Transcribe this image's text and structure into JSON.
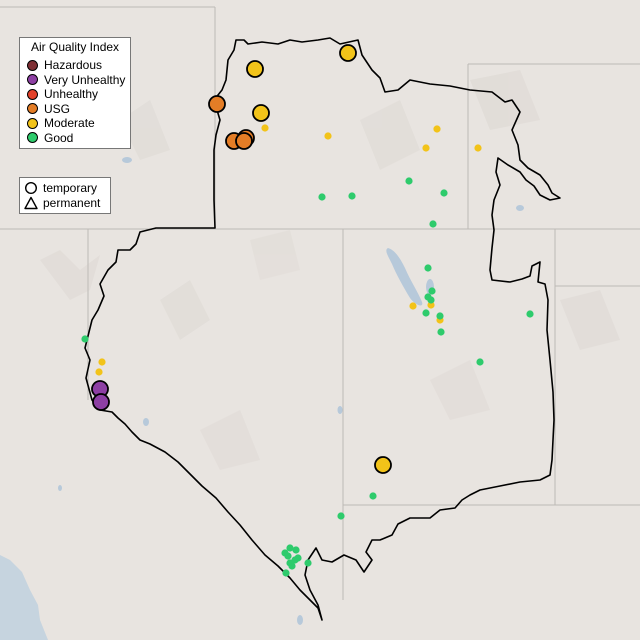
{
  "legend_aqi": {
    "title": "Air Quality Index",
    "items": [
      {
        "label": "Hazardous",
        "color": "#7e2f34"
      },
      {
        "label": "Very Unhealthy",
        "color": "#8d3fa3"
      },
      {
        "label": "Unhealthy",
        "color": "#e2412a"
      },
      {
        "label": "USG",
        "color": "#e47d26"
      },
      {
        "label": "Moderate",
        "color": "#f2c319"
      },
      {
        "label": "Good",
        "color": "#2ecb6c"
      }
    ]
  },
  "legend_type": {
    "items": [
      {
        "label": "temporary",
        "icon": "circle-icon"
      },
      {
        "label": "permanent",
        "icon": "triangle-icon"
      }
    ]
  },
  "monitors": [
    {
      "category": "Moderate",
      "kind": "temporary",
      "highlight": true
    },
    {
      "category": "Moderate",
      "kind": "temporary",
      "highlight": true
    },
    {
      "category": "USG",
      "kind": "temporary",
      "highlight": true
    },
    {
      "category": "Moderate",
      "kind": "temporary",
      "highlight": true
    },
    {
      "category": "USG",
      "kind": "temporary",
      "highlight": true
    },
    {
      "category": "USG",
      "kind": "temporary",
      "highlight": true
    },
    {
      "category": "USG",
      "kind": "temporary",
      "highlight": true
    },
    {
      "category": "Very Unhealthy",
      "kind": "temporary",
      "highlight": true
    },
    {
      "category": "Very Unhealthy",
      "kind": "temporary",
      "highlight": true
    },
    {
      "category": "Moderate",
      "kind": "temporary",
      "highlight": true
    },
    {
      "category": "Moderate",
      "kind": "permanent"
    },
    {
      "category": "Moderate",
      "kind": "permanent"
    },
    {
      "category": "Moderate",
      "kind": "permanent"
    },
    {
      "category": "Moderate",
      "kind": "permanent"
    },
    {
      "category": "Moderate",
      "kind": "permanent"
    },
    {
      "category": "Moderate",
      "kind": "permanent"
    },
    {
      "category": "Moderate",
      "kind": "permanent"
    },
    {
      "category": "Moderate",
      "kind": "permanent"
    },
    {
      "category": "Moderate",
      "kind": "permanent"
    },
    {
      "category": "Moderate",
      "kind": "permanent"
    },
    {
      "category": "Good",
      "kind": "permanent"
    },
    {
      "category": "Good",
      "kind": "permanent"
    },
    {
      "category": "Good",
      "kind": "permanent"
    },
    {
      "category": "Good",
      "kind": "permanent"
    },
    {
      "category": "Good",
      "kind": "permanent"
    },
    {
      "category": "Good",
      "kind": "permanent"
    },
    {
      "category": "Good",
      "kind": "permanent"
    },
    {
      "category": "Good",
      "kind": "permanent"
    },
    {
      "category": "Good",
      "kind": "permanent"
    },
    {
      "category": "Good",
      "kind": "permanent"
    },
    {
      "category": "Good",
      "kind": "permanent"
    },
    {
      "category": "Good",
      "kind": "permanent"
    },
    {
      "category": "Good",
      "kind": "permanent"
    },
    {
      "category": "Good",
      "kind": "permanent"
    },
    {
      "category": "Good",
      "kind": "permanent"
    },
    {
      "category": "Good",
      "kind": "permanent"
    },
    {
      "category": "Good",
      "kind": "permanent"
    },
    {
      "category": "Good",
      "kind": "permanent"
    },
    {
      "category": "Good",
      "kind": "permanent"
    },
    {
      "category": "Good",
      "kind": "permanent"
    },
    {
      "category": "Good",
      "kind": "permanent"
    },
    {
      "category": "Good",
      "kind": "permanent"
    },
    {
      "category": "Good",
      "kind": "permanent"
    },
    {
      "category": "Good",
      "kind": "permanent"
    },
    {
      "category": "Good",
      "kind": "permanent"
    },
    {
      "category": "Good",
      "kind": "permanent"
    },
    {
      "category": "Good",
      "kind": "permanent"
    }
  ]
}
